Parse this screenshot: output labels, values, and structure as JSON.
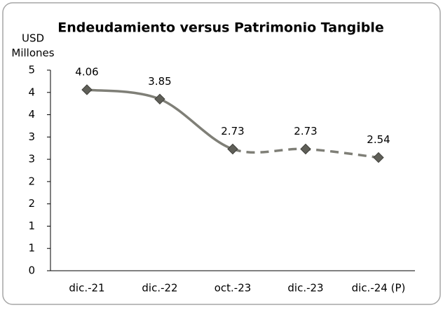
{
  "chart_data": {
    "type": "line",
    "title": "Endeudamiento versus Patrimonio Tangible",
    "y_label": [
      "USD",
      "Millones"
    ],
    "categories": [
      "dic.-21",
      "dic.-22",
      "oct.-23",
      "dic.-23",
      "dic.-24 (P)"
    ],
    "series": [
      {
        "name": "Endeudamiento versus Patrimonio Tangible",
        "color": "#7f7f77",
        "values": [
          4.06,
          3.85,
          2.73,
          2.73,
          2.54
        ],
        "segment_styles": [
          "solid",
          "solid",
          "dashed",
          "dashed"
        ]
      }
    ],
    "ylim": [
      0,
      4.5
    ],
    "yticks": [
      0,
      {
        "value": 0.5,
        "label": "1"
      },
      1,
      {
        "value": 1.5,
        "label": "2"
      },
      2,
      {
        "value": 2.5,
        "label": "3"
      },
      3,
      {
        "value": 3.5,
        "label": "4"
      },
      4,
      {
        "value": 4.5,
        "label": "5"
      }
    ],
    "grid": false
  }
}
